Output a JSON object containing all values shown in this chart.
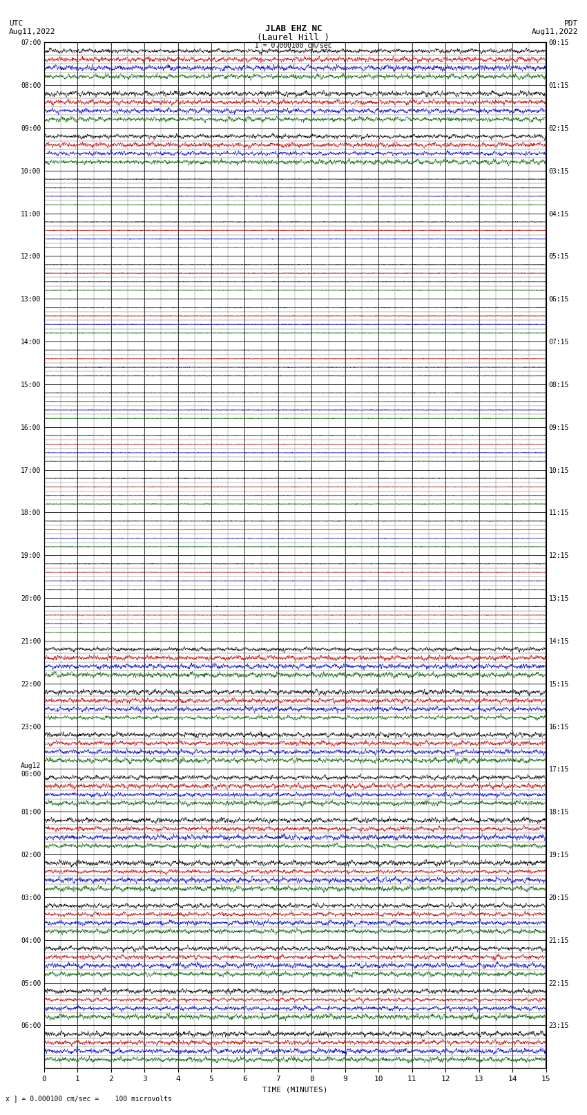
{
  "title_line1": "JLAB EHZ NC",
  "title_line2": "(Laurel Hill )",
  "scale_label": "I = 0.000100 cm/sec",
  "left_header": "UTC\nAug11,2022",
  "right_header": "PDT\nAug11,2022",
  "xlabel": "TIME (MINUTES)",
  "bottom_note": "x ] = 0.000100 cm/sec =    100 microvolts",
  "row_labels_left": [
    "07:00",
    "08:00",
    "09:00",
    "10:00",
    "11:00",
    "12:00",
    "13:00",
    "14:00",
    "15:00",
    "16:00",
    "17:00",
    "18:00",
    "19:00",
    "20:00",
    "21:00",
    "22:00",
    "23:00",
    "Aug12\n00:00",
    "01:00",
    "02:00",
    "03:00",
    "04:00",
    "05:00",
    "06:00"
  ],
  "row_labels_right": [
    "00:15",
    "01:15",
    "02:15",
    "03:15",
    "04:15",
    "05:15",
    "06:15",
    "07:15",
    "08:15",
    "09:15",
    "10:15",
    "11:15",
    "12:15",
    "13:15",
    "14:15",
    "15:15",
    "16:15",
    "17:15",
    "18:15",
    "19:15",
    "20:15",
    "21:15",
    "22:15",
    "23:15"
  ],
  "n_rows": 24,
  "traces_per_row": 4,
  "xmin": 0,
  "xmax": 15,
  "bg_color": "#ffffff",
  "major_grid_color": "#000000",
  "minor_grid_color": "#555555",
  "trace_colors": [
    "#000000",
    "#cc0000",
    "#0000cc",
    "#006600"
  ],
  "active_rows": [
    0,
    1,
    2,
    14,
    15,
    16,
    17,
    18,
    19,
    20,
    21,
    22,
    23
  ],
  "active_amp": 0.06,
  "quiet_amp": 0.008,
  "font_family": "monospace",
  "font_size_ticks": 7,
  "font_size_xlabel": 8,
  "font_size_title": 9,
  "font_size_header": 8,
  "font_size_note": 7
}
